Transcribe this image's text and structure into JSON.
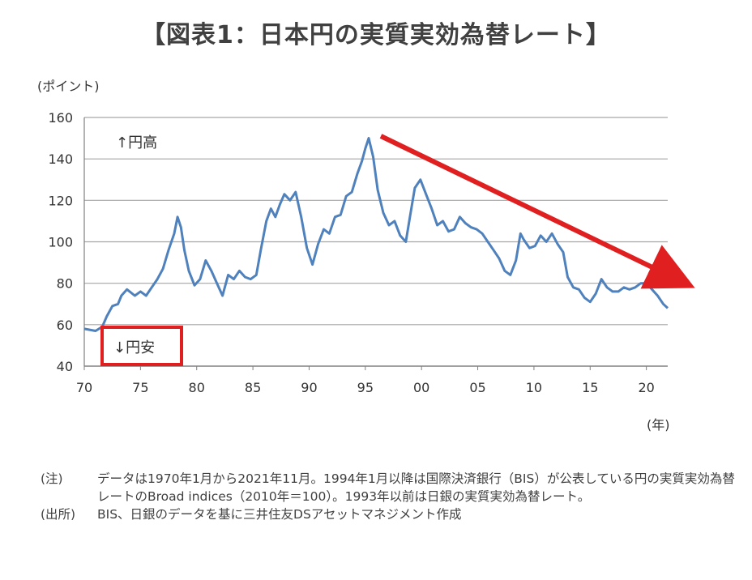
{
  "title": "【図表1：日本円の実質実効為替レート】",
  "chart_data": {
    "type": "line",
    "title": "日本円の実質実効為替レート",
    "ylabel": "(ポイント)",
    "xlabel": "(年)",
    "ylim": [
      40,
      160
    ],
    "yticks": [
      40,
      60,
      80,
      100,
      120,
      140,
      160
    ],
    "xlim": [
      1970,
      2021.9
    ],
    "xticks": [
      1970,
      1975,
      1980,
      1985,
      1990,
      1995,
      2000,
      2005,
      2010,
      2015,
      2020
    ],
    "xtick_labels": [
      "70",
      "75",
      "80",
      "85",
      "90",
      "95",
      "00",
      "05",
      "10",
      "15",
      "20"
    ],
    "grid": true,
    "series": [
      {
        "name": "実質実効為替レート",
        "color": "#4f81bd",
        "x": [
          1970.0,
          1971.0,
          1971.6,
          1972.0,
          1972.5,
          1973.0,
          1973.3,
          1973.8,
          1974.5,
          1975.0,
          1975.5,
          1976.0,
          1976.5,
          1977.0,
          1977.5,
          1978.0,
          1978.3,
          1978.6,
          1978.9,
          1979.3,
          1979.8,
          1980.3,
          1980.8,
          1981.3,
          1981.8,
          1982.3,
          1982.8,
          1983.3,
          1983.8,
          1984.3,
          1984.8,
          1985.3,
          1985.7,
          1986.2,
          1986.6,
          1987.0,
          1987.4,
          1987.8,
          1988.3,
          1988.8,
          1989.3,
          1989.8,
          1990.3,
          1990.8,
          1991.3,
          1991.8,
          1992.3,
          1992.8,
          1993.3,
          1993.8,
          1994.3,
          1994.7,
          1995.0,
          1995.3,
          1995.7,
          1996.1,
          1996.6,
          1997.1,
          1997.6,
          1998.1,
          1998.6,
          1999.0,
          1999.4,
          1999.9,
          2000.4,
          2000.9,
          2001.4,
          2001.9,
          2002.4,
          2002.9,
          2003.4,
          2003.9,
          2004.4,
          2004.9,
          2005.4,
          2005.9,
          2006.4,
          2006.9,
          2007.4,
          2007.9,
          2008.4,
          2008.8,
          2009.1,
          2009.6,
          2010.1,
          2010.6,
          2011.1,
          2011.6,
          2012.1,
          2012.6,
          2013.0,
          2013.5,
          2014.0,
          2014.5,
          2015.0,
          2015.5,
          2016.0,
          2016.5,
          2017.0,
          2017.5,
          2018.0,
          2018.5,
          2019.0,
          2019.5,
          2020.0,
          2020.5,
          2021.0,
          2021.5,
          2021.9
        ],
        "values": [
          58,
          57,
          59,
          64,
          69,
          70,
          74,
          77,
          74,
          76,
          74,
          78,
          82,
          87,
          96,
          104,
          112,
          107,
          96,
          86,
          79,
          82,
          91,
          86,
          80,
          74,
          84,
          82,
          86,
          83,
          82,
          84,
          96,
          110,
          116,
          112,
          118,
          123,
          120,
          124,
          112,
          97,
          89,
          99,
          106,
          104,
          112,
          113,
          122,
          124,
          133,
          139,
          145,
          150,
          141,
          125,
          114,
          108,
          110,
          103,
          100,
          113,
          126,
          130,
          123,
          116,
          108,
          110,
          105,
          106,
          112,
          109,
          107,
          106,
          104,
          100,
          96,
          92,
          86,
          84,
          91,
          104,
          101,
          97,
          98,
          103,
          100,
          104,
          99,
          95,
          83,
          78,
          77,
          73,
          71,
          75,
          82,
          78,
          76,
          76,
          78,
          77,
          78,
          80,
          80,
          77,
          74,
          70,
          68
        ]
      }
    ],
    "annotations": {
      "upper_label": "↑円高",
      "lower_label": "↓円安",
      "trend_arrow": "下向き"
    }
  },
  "notes": [
    {
      "tag": "(注)",
      "text": "データは1970年1月から2021年11月。1994年1月以降は国際決済銀行（BIS）が公表している円の実質実効為替レートのBroad indices（2010年＝100）。1993年以前は日銀の実質実効為替レート。"
    },
    {
      "tag": "(出所)",
      "text": "BIS、日銀のデータを基に三井住友DSアセットマネジメント作成"
    }
  ],
  "colors": {
    "line": "#4f81bd",
    "arrow": "#e02020",
    "box": "#e02020",
    "grid": "#a6a6a6"
  }
}
